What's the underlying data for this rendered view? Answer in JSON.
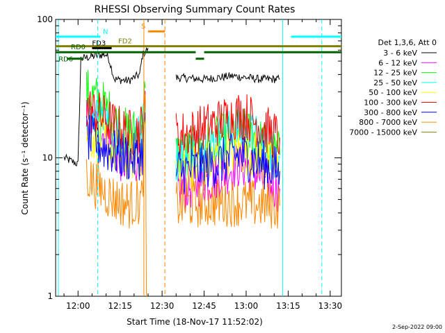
{
  "chart_data": {
    "type": "line",
    "title": "RHESSI Observing Summary Count Rates",
    "xlabel": "Start Time (18-Nov-17 11:52:02)",
    "ylabel": "Count Rate (s⁻¹ detector⁻¹)",
    "yscale": "log",
    "ylim": [
      1,
      100
    ],
    "xlim": [
      "11:52:02",
      "13:34:00"
    ],
    "x_ticks": [
      "12:00",
      "12:15",
      "12:30",
      "12:45",
      "13:00",
      "13:15",
      "13:30"
    ],
    "y_ticks": [
      "1",
      "10",
      "100"
    ],
    "legend_placement": "right",
    "legend_title": "Det 1,3,6, Att 0",
    "timestamp": "2-Sep-2022 09:00",
    "series": [
      {
        "name": "3 - 6 keV",
        "color": "#000000",
        "segments": [
          [
            [
              "11:55",
              10
            ],
            [
              "12:00",
              9
            ],
            [
              "12:01",
              52
            ],
            [
              "12:05",
              54
            ],
            [
              "12:07",
              55
            ],
            [
              "12:10",
              56
            ],
            [
              "12:11",
              52
            ],
            [
              "12:13",
              37
            ],
            [
              "12:18",
              36
            ],
            [
              "12:20",
              38
            ],
            [
              "12:22",
              40
            ],
            [
              "12:23",
              55
            ],
            [
              "12:25",
              62
            ]
          ],
          [
            [
              "12:35",
              38
            ],
            [
              "12:45",
              37
            ],
            [
              "12:55",
              39
            ],
            [
              "13:00",
              38
            ],
            [
              "13:05",
              37
            ],
            [
              "13:12",
              37
            ]
          ]
        ]
      },
      {
        "name": "6 - 12 keV",
        "color": "#ff00ff",
        "segments": [
          [
            [
              "12:03",
              19
            ],
            [
              "12:06",
              17
            ],
            [
              "12:09",
              15
            ],
            [
              "12:12",
              12
            ],
            [
              "12:15",
              10
            ],
            [
              "12:18",
              9
            ],
            [
              "12:21",
              10
            ],
            [
              "12:23",
              12
            ],
            [
              "12:24",
              30
            ]
          ],
          [
            [
              "12:35",
              6
            ],
            [
              "12:40",
              6.3
            ],
            [
              "12:45",
              6.8
            ],
            [
              "12:50",
              7.5
            ],
            [
              "12:55",
              8.5
            ],
            [
              "12:57",
              9
            ],
            [
              "13:00",
              8.8
            ],
            [
              "13:03",
              8
            ],
            [
              "13:06",
              7
            ],
            [
              "13:09",
              6.5
            ],
            [
              "13:12",
              6
            ]
          ]
        ]
      },
      {
        "name": "12 - 25 keV",
        "color": "#00ff00",
        "segments": [
          [
            [
              "12:03",
              30
            ],
            [
              "12:06",
              27
            ],
            [
              "12:09",
              24
            ],
            [
              "12:12",
              20
            ],
            [
              "12:15",
              16.5
            ],
            [
              "12:18",
              15
            ],
            [
              "12:21",
              15.5
            ],
            [
              "12:23",
              18
            ],
            [
              "12:24",
              32
            ]
          ],
          [
            [
              "12:35",
              10.5
            ],
            [
              "12:40",
              11
            ],
            [
              "12:45",
              12
            ],
            [
              "12:50",
              13.5
            ],
            [
              "12:55",
              15
            ],
            [
              "12:57",
              15.5
            ],
            [
              "13:00",
              15
            ],
            [
              "13:03",
              14
            ],
            [
              "13:06",
              12.5
            ],
            [
              "13:09",
              11
            ],
            [
              "13:12",
              10.5
            ]
          ]
        ]
      },
      {
        "name": "25 - 50 keV",
        "color": "#00ffff",
        "segments": [
          [
            [
              "12:03",
              20
            ],
            [
              "12:06",
              18.5
            ],
            [
              "12:09",
              17
            ],
            [
              "12:12",
              15.5
            ],
            [
              "12:15",
              14
            ],
            [
              "12:18",
              13
            ],
            [
              "12:21",
              13.5
            ],
            [
              "12:23",
              15
            ],
            [
              "12:24",
              26
            ]
          ],
          [
            [
              "12:35",
              10
            ],
            [
              "12:40",
              11
            ],
            [
              "12:45",
              12
            ],
            [
              "12:50",
              13.5
            ],
            [
              "12:55",
              15.5
            ],
            [
              "12:57",
              16
            ],
            [
              "13:00",
              15.5
            ],
            [
              "13:03",
              14
            ],
            [
              "13:06",
              12.5
            ],
            [
              "13:09",
              11
            ],
            [
              "13:12",
              10
            ]
          ]
        ]
      },
      {
        "name": "50 - 100 keV",
        "color": "#ffff00",
        "segments": [
          [
            [
              "12:03",
              15
            ],
            [
              "12:06",
              14
            ],
            [
              "12:09",
              13
            ],
            [
              "12:12",
              11.5
            ],
            [
              "12:15",
              10.5
            ],
            [
              "12:18",
              10
            ],
            [
              "12:21",
              10.5
            ],
            [
              "12:23",
              11
            ],
            [
              "12:24",
              20
            ]
          ],
          [
            [
              "12:35",
              8.2
            ],
            [
              "12:40",
              8.5
            ],
            [
              "12:45",
              9
            ],
            [
              "12:50",
              10
            ],
            [
              "12:55",
              11
            ],
            [
              "12:57",
              11.5
            ],
            [
              "13:00",
              11
            ],
            [
              "13:03",
              10.5
            ],
            [
              "13:06",
              9.5
            ],
            [
              "13:09",
              8.8
            ],
            [
              "13:12",
              8.3
            ]
          ]
        ]
      },
      {
        "name": "100 - 300 keV",
        "color": "#ff0000",
        "segments": [
          [
            [
              "12:03",
              23
            ],
            [
              "12:06",
              21
            ],
            [
              "12:09",
              19.5
            ],
            [
              "12:12",
              17.5
            ],
            [
              "12:15",
              16
            ],
            [
              "12:18",
              15
            ],
            [
              "12:21",
              15.5
            ],
            [
              "12:23",
              17
            ],
            [
              "12:24",
              30
            ]
          ],
          [
            [
              "12:35",
              14.5
            ],
            [
              "12:40",
              15
            ],
            [
              "12:45",
              16.5
            ],
            [
              "12:50",
              18
            ],
            [
              "12:55",
              20
            ],
            [
              "12:57",
              20.5
            ],
            [
              "13:00",
              20
            ],
            [
              "13:03",
              18.5
            ],
            [
              "13:06",
              16.5
            ],
            [
              "13:09",
              15
            ],
            [
              "13:12",
              14
            ]
          ]
        ]
      },
      {
        "name": "300 - 800 keV",
        "color": "#0000ff",
        "segments": [
          [
            [
              "12:03",
              14
            ],
            [
              "12:06",
              13
            ],
            [
              "12:09",
              12
            ],
            [
              "12:12",
              11
            ],
            [
              "12:15",
              10.5
            ],
            [
              "12:18",
              10
            ],
            [
              "12:21",
              10
            ],
            [
              "12:23",
              11
            ],
            [
              "12:24",
              18
            ]
          ],
          [
            [
              "12:35",
              8
            ],
            [
              "12:40",
              8.2
            ],
            [
              "12:45",
              8.6
            ],
            [
              "12:50",
              9.2
            ],
            [
              "12:55",
              10
            ],
            [
              "12:57",
              10.5
            ],
            [
              "13:00",
              10.2
            ],
            [
              "13:03",
              9.6
            ],
            [
              "13:06",
              9
            ],
            [
              "13:09",
              8.5
            ],
            [
              "13:12",
              8
            ]
          ]
        ]
      },
      {
        "name": "800 - 7000 keV",
        "color": "#ff8800",
        "segments": [
          [
            [
              "12:03",
              7.5
            ],
            [
              "12:06",
              6.5
            ],
            [
              "12:09",
              5.8
            ],
            [
              "12:12",
              5.2
            ],
            [
              "12:15",
              4.8
            ],
            [
              "12:18",
              4.6
            ],
            [
              "12:21",
              4.8
            ],
            [
              "12:23",
              5
            ],
            [
              "12:24",
              30
            ],
            [
              "12:24.4",
              1
            ]
          ],
          [
            [
              "12:35",
              4.6
            ],
            [
              "12:45",
              4.7
            ],
            [
              "12:55",
              4.8
            ],
            [
              "13:00",
              4.7
            ],
            [
              "13:05",
              4.6
            ],
            [
              "13:12",
              4.5
            ]
          ]
        ]
      },
      {
        "name": "7000 - 15000 keV",
        "color": "#808000",
        "segments": []
      }
    ],
    "annotations": [
      {
        "label": "N",
        "color": "#00ffff",
        "bars": [
          [
            "11:52",
            75
          ],
          [
            "12:08",
            75
          ],
          [
            "13:16",
            75
          ],
          [
            "13:34",
            75
          ]
        ]
      },
      {
        "label": "S",
        "color": "#ff8800",
        "bars": [
          [
            "12:25",
            82
          ],
          [
            "12:31",
            82
          ]
        ]
      },
      {
        "label": "FD2",
        "color": "#808000",
        "bars": [
          [
            "11:52",
            64
          ],
          [
            "13:34",
            64
          ]
        ]
      },
      {
        "label": "FD3",
        "color": "#000000",
        "bars": [
          [
            "12:05",
            62
          ],
          [
            "12:12",
            62
          ]
        ]
      },
      {
        "label": "RD0",
        "color": "#006400",
        "bars": [
          [
            "11:52",
            58
          ],
          [
            "12:42",
            58
          ],
          [
            "12:45",
            58
          ],
          [
            "13:34",
            58
          ]
        ]
      },
      {
        "label": "RD6",
        "color": "#006400",
        "bars": [
          [
            "11:56",
            52
          ],
          [
            "12:02",
            52
          ],
          [
            "12:42",
            52
          ],
          [
            "12:45",
            52
          ]
        ]
      }
    ],
    "vertical_lines": [
      {
        "time": "11:53",
        "color": "#00ffff",
        "style": "solid"
      },
      {
        "time": "12:07",
        "color": "#00ffff",
        "style": "dashed"
      },
      {
        "time": "12:23.5",
        "color": "#ff8800",
        "style": "solid"
      },
      {
        "time": "12:31",
        "color": "#ff8800",
        "style": "dashed"
      },
      {
        "time": "13:13",
        "color": "#00ffff",
        "style": "solid"
      },
      {
        "time": "13:27",
        "color": "#00ffff",
        "style": "dashed"
      }
    ]
  }
}
